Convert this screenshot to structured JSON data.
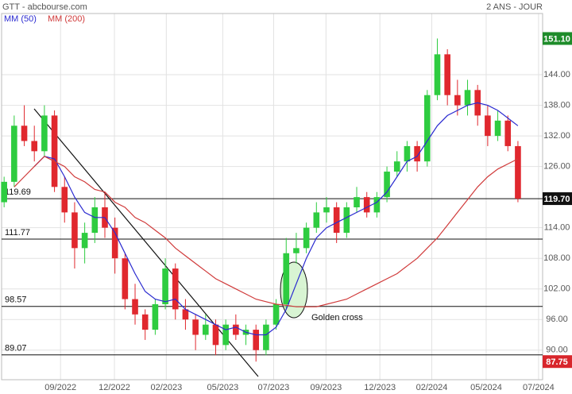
{
  "chart_data": {
    "type": "candlestick",
    "title": "GTT - abcbourse.com",
    "subtitle": "2 ANS - JOUR",
    "x": [
      0,
      2,
      4,
      6,
      8,
      10,
      12,
      14,
      16,
      18,
      20,
      22,
      24,
      26,
      28,
      30,
      32,
      34,
      36,
      38,
      40,
      42,
      44,
      46,
      48,
      50,
      52,
      54,
      56,
      58,
      60,
      62,
      64,
      66,
      68,
      70,
      72,
      74,
      76,
      78,
      80,
      82,
      84,
      86,
      88,
      90,
      92,
      94,
      96,
      98,
      100,
      102
    ],
    "open": [
      119,
      123,
      134,
      131,
      129,
      136,
      122,
      117,
      110,
      113,
      118,
      114,
      108,
      100,
      97,
      94,
      99,
      106,
      98,
      96,
      93,
      95,
      91,
      95,
      93,
      94,
      90,
      95,
      99,
      109,
      110,
      114,
      117,
      118,
      113,
      118,
      120,
      117,
      120,
      125,
      127,
      130,
      127,
      140,
      148,
      140,
      138,
      141,
      136,
      132,
      135,
      130
    ],
    "high": [
      124,
      136,
      138,
      134,
      138,
      137,
      124,
      119,
      115,
      120,
      121,
      116,
      109,
      103,
      98,
      100,
      108,
      107,
      100,
      97,
      97,
      96,
      96,
      97,
      95,
      95,
      96,
      100,
      112,
      113,
      115,
      119,
      120,
      119,
      119,
      122,
      121,
      121,
      126,
      129,
      131,
      131,
      141,
      151.1,
      149,
      143,
      143,
      142,
      138,
      137,
      136,
      131
    ],
    "low": [
      118,
      122,
      130,
      127,
      128,
      121,
      115,
      106,
      107,
      111,
      112,
      105,
      98,
      95,
      92,
      93,
      98,
      96,
      94,
      90,
      92,
      89,
      90,
      92,
      91,
      87.75,
      89,
      94,
      98,
      107,
      109,
      113,
      115,
      111,
      112,
      117,
      116,
      116,
      119,
      124,
      125,
      125,
      126,
      139,
      138,
      136,
      136,
      134,
      130,
      131,
      129,
      119
    ],
    "close": [
      123,
      134,
      131,
      129,
      136,
      122,
      117,
      110,
      113,
      118,
      114,
      108,
      100,
      97,
      94,
      99,
      106,
      98,
      96,
      93,
      95,
      91,
      95,
      93,
      94,
      90,
      95,
      99,
      109,
      110,
      114,
      117,
      118,
      113,
      118,
      120,
      117,
      120,
      125,
      127,
      130,
      127,
      140,
      148,
      140,
      138,
      141,
      136,
      132,
      135,
      130,
      119.7
    ],
    "up_color": "#2ecc40",
    "down_color": "#e0282e",
    "series": [
      {
        "name": "MM (50)",
        "color": "#2a2ad0",
        "values": [
          null,
          null,
          null,
          126,
          128,
          127.5,
          124,
          120,
          117,
          116,
          116,
          113,
          109,
          105,
          101.5,
          100,
          99.5,
          100,
          98,
          97,
          96,
          95,
          94,
          94.5,
          93.5,
          93,
          93,
          94.5,
          98,
          103,
          108,
          112,
          114,
          115,
          116,
          117,
          118,
          119,
          121,
          124,
          127,
          128,
          131,
          134,
          136,
          137,
          138,
          138.5,
          138,
          137,
          135.5,
          134
        ]
      },
      {
        "name": "MM (200)",
        "color": "#d03a3a",
        "values": [
          null,
          122,
          124,
          126,
          128,
          127,
          126,
          124,
          123,
          121.5,
          121,
          119,
          118,
          116,
          115,
          113.5,
          112,
          110,
          108.5,
          107,
          105.5,
          104,
          103,
          102,
          101,
          100,
          99.5,
          99,
          98.8,
          98.5,
          98.5,
          98.5,
          99,
          99.5,
          100,
          101,
          102,
          103,
          104,
          105,
          106.5,
          108,
          110,
          112,
          114.5,
          117,
          119.5,
          122,
          124,
          125.5,
          126.5,
          127.5
        ]
      }
    ],
    "xlim": [
      -0.5,
      106.9
    ],
    "ylim": [
      84.2,
      156
    ],
    "xticks": [
      {
        "value": 11.2,
        "label": "09/2022"
      },
      {
        "value": 21.9,
        "label": "12/2022"
      },
      {
        "value": 32.2,
        "label": "02/2023"
      },
      {
        "value": 43.4,
        "label": "05/2023"
      },
      {
        "value": 53.5,
        "label": "07/2023"
      },
      {
        "value": 63.9,
        "label": "09/2023"
      },
      {
        "value": 74.6,
        "label": "12/2023"
      },
      {
        "value": 84.9,
        "label": "02/2024"
      },
      {
        "value": 95.7,
        "label": "05/2024"
      },
      {
        "value": 106.1,
        "label": "07/2024"
      }
    ],
    "yticks": [
      {
        "value": 90,
        "label": "90.00"
      },
      {
        "value": 96,
        "label": "96.00"
      },
      {
        "value": 102,
        "label": "102.00"
      },
      {
        "value": 108,
        "label": "108.00"
      },
      {
        "value": 114,
        "label": "114.00"
      },
      {
        "value": 126,
        "label": "126.00"
      },
      {
        "value": 132,
        "label": "132.00"
      },
      {
        "value": 138,
        "label": "138.00"
      },
      {
        "value": 144,
        "label": "144.00"
      }
    ],
    "grid": true,
    "levels": [
      {
        "value": 119.69,
        "label": "119.69"
      },
      {
        "value": 111.77,
        "label": "111.77"
      },
      {
        "value": 98.57,
        "label": "98.57"
      },
      {
        "value": 89.07,
        "label": "89.07"
      }
    ],
    "price_tags": [
      {
        "value": 151.1,
        "label": "151.10",
        "color": "#1e8c2a"
      },
      {
        "value": 119.7,
        "label": "119.70",
        "color": "#111111"
      },
      {
        "value": 87.75,
        "label": "87.75",
        "color": "#d8262c"
      }
    ],
    "annotation": "Golden cross"
  }
}
